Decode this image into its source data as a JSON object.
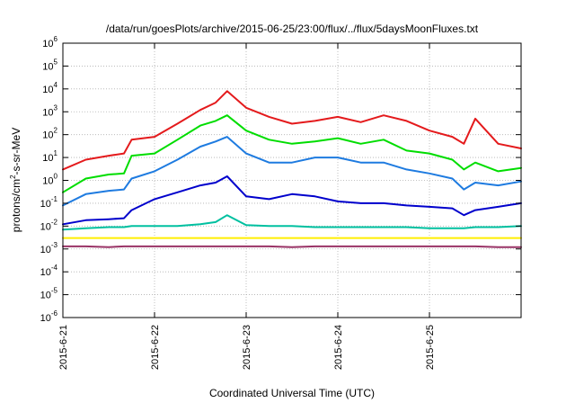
{
  "chart_data": {
    "type": "line",
    "title": "/data/run/goesPlots/archive/2015-06-25/23:00/flux/../flux/5daysMoonFluxes.txt",
    "xlabel": "Coordinated Universal Time (UTC)",
    "ylabel": {
      "main": "protons/cm",
      "sup": "2",
      "rest": "-s-sr-MeV"
    },
    "yscale": "log",
    "ylim": [
      1e-06,
      1000000.0
    ],
    "yticks": [
      {
        "value": 1e-06,
        "base": "10",
        "exp": "-6"
      },
      {
        "value": 1e-05,
        "base": "10",
        "exp": "-5"
      },
      {
        "value": 0.0001,
        "base": "10",
        "exp": "-4"
      },
      {
        "value": 0.001,
        "base": "10",
        "exp": "-3"
      },
      {
        "value": 0.01,
        "base": "10",
        "exp": "-2"
      },
      {
        "value": 0.1,
        "base": "10",
        "exp": "-1"
      },
      {
        "value": 1.0,
        "base": "10",
        "exp": "0"
      },
      {
        "value": 10.0,
        "base": "10",
        "exp": "1"
      },
      {
        "value": 100.0,
        "base": "10",
        "exp": "2"
      },
      {
        "value": 1000.0,
        "base": "10",
        "exp": "3"
      },
      {
        "value": 10000.0,
        "base": "10",
        "exp": "4"
      },
      {
        "value": 100000.0,
        "base": "10",
        "exp": "5"
      },
      {
        "value": 1000000.0,
        "base": "10",
        "exp": "6"
      }
    ],
    "xlim": [
      "2015-06-21T00:00",
      "2015-06-26T00:00"
    ],
    "xticks": [
      {
        "value": "2015-06-21T00:00",
        "label": "2015-6-21"
      },
      {
        "value": "2015-06-22T00:00",
        "label": "2015-6-22"
      },
      {
        "value": "2015-06-23T00:00",
        "label": "2015-6-23"
      },
      {
        "value": "2015-06-24T00:00",
        "label": "2015-6-24"
      },
      {
        "value": "2015-06-25T00:00",
        "label": "2015-6-25"
      }
    ],
    "grid": true,
    "x": [
      "2015-06-21T00:00",
      "2015-06-21T06:00",
      "2015-06-21T12:00",
      "2015-06-21T16:00",
      "2015-06-21T18:00",
      "2015-06-22T00:00",
      "2015-06-22T06:00",
      "2015-06-22T12:00",
      "2015-06-22T16:00",
      "2015-06-22T19:00",
      "2015-06-23T00:00",
      "2015-06-23T06:00",
      "2015-06-23T12:00",
      "2015-06-23T18:00",
      "2015-06-24T00:00",
      "2015-06-24T06:00",
      "2015-06-24T12:00",
      "2015-06-24T18:00",
      "2015-06-25T00:00",
      "2015-06-25T06:00",
      "2015-06-25T09:00",
      "2015-06-25T12:00",
      "2015-06-25T18:00",
      "2015-06-26T00:00"
    ],
    "series": [
      {
        "color": "#e41a1c",
        "values": [
          3,
          8,
          12,
          15,
          60,
          80,
          300,
          1200,
          2500,
          8000,
          1500,
          600,
          300,
          400,
          600,
          350,
          700,
          400,
          150,
          80,
          40,
          500,
          40,
          25
        ]
      },
      {
        "color": "#00dd00",
        "values": [
          0.3,
          1.2,
          1.8,
          2.0,
          12,
          15,
          60,
          250,
          400,
          700,
          150,
          60,
          40,
          50,
          70,
          40,
          60,
          20,
          15,
          8,
          3,
          6,
          2.5,
          3.5
        ]
      },
      {
        "color": "#1e7be0",
        "values": [
          0.08,
          0.25,
          0.35,
          0.4,
          1.2,
          2.5,
          8,
          30,
          50,
          80,
          15,
          6,
          6,
          10,
          10,
          6,
          6,
          3,
          2,
          1.2,
          0.4,
          0.8,
          0.6,
          0.9
        ]
      },
      {
        "color": "#0000cc",
        "values": [
          0.012,
          0.018,
          0.02,
          0.022,
          0.05,
          0.15,
          0.3,
          0.6,
          0.8,
          1.5,
          0.2,
          0.15,
          0.25,
          0.2,
          0.12,
          0.1,
          0.1,
          0.08,
          0.07,
          0.06,
          0.03,
          0.05,
          0.07,
          0.1
        ]
      },
      {
        "color": "#00c0a0",
        "values": [
          0.007,
          0.008,
          0.009,
          0.009,
          0.01,
          0.01,
          0.01,
          0.012,
          0.015,
          0.03,
          0.011,
          0.01,
          0.01,
          0.009,
          0.009,
          0.009,
          0.009,
          0.009,
          0.008,
          0.008,
          0.008,
          0.009,
          0.009,
          0.01
        ]
      },
      {
        "color": "#ffee00",
        "values": [
          0.003,
          0.003,
          0.003,
          0.003,
          0.003,
          0.003,
          0.003,
          0.003,
          0.003,
          0.003,
          0.003,
          0.003,
          0.003,
          0.003,
          0.003,
          0.003,
          0.003,
          0.003,
          0.003,
          0.003,
          0.003,
          0.003,
          0.003,
          0.003
        ]
      },
      {
        "color": "#993366",
        "values": [
          0.0013,
          0.0013,
          0.0012,
          0.0013,
          0.0013,
          0.0013,
          0.0013,
          0.0013,
          0.0013,
          0.0013,
          0.0013,
          0.0013,
          0.0012,
          0.0013,
          0.0013,
          0.0013,
          0.0013,
          0.0013,
          0.0013,
          0.0013,
          0.0013,
          0.0013,
          0.0012,
          0.0012
        ]
      }
    ]
  }
}
